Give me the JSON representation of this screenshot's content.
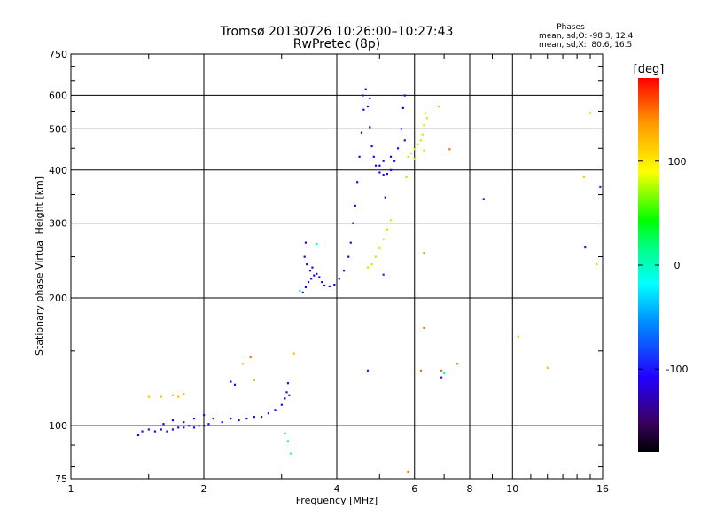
{
  "chart_data": {
    "type": "scatter",
    "title": "Tromsø 20130726 10:26:00–10:27:43",
    "subtitle": "RwPretec (8p)",
    "xlabel": "Frequency [MHz]",
    "ylabel": "Stationary phase Virtual Height [km]",
    "x_scale": "log",
    "y_scale": "log",
    "xlim": [
      1,
      16
    ],
    "ylim": [
      75,
      750
    ],
    "x_ticks": [
      1,
      2,
      4,
      6,
      8,
      10,
      16
    ],
    "y_ticks": [
      75,
      100,
      200,
      300,
      400,
      500,
      600,
      750
    ],
    "grid": true,
    "stats": {
      "heading": "Phases",
      "line_o": "mean, sd,O: -98.3, 12.4",
      "line_x": "mean, sd,X:  80.6, 16.5"
    },
    "colorbar": {
      "label": "[deg]",
      "range": [
        -180,
        180
      ],
      "ticks": [
        100,
        0,
        -100
      ]
    },
    "series": [
      {
        "color_deg": -105,
        "points": [
          [
            1.42,
            95
          ],
          [
            1.45,
            97
          ],
          [
            1.5,
            98
          ],
          [
            1.55,
            97
          ],
          [
            1.6,
            98
          ],
          [
            1.65,
            97
          ],
          [
            1.7,
            98
          ],
          [
            1.75,
            99
          ],
          [
            1.8,
            99
          ],
          [
            1.85,
            100
          ],
          [
            1.9,
            99
          ],
          [
            1.95,
            100
          ],
          [
            2.0,
            100
          ],
          [
            2.05,
            101
          ],
          [
            1.62,
            101
          ],
          [
            1.7,
            103
          ],
          [
            1.8,
            102
          ],
          [
            1.9,
            104
          ],
          [
            2.0,
            106
          ],
          [
            2.1,
            104
          ],
          [
            2.2,
            102
          ],
          [
            2.3,
            104
          ],
          [
            2.4,
            103
          ],
          [
            2.5,
            104
          ],
          [
            2.6,
            105
          ],
          [
            2.7,
            105
          ],
          [
            2.8,
            107
          ],
          [
            2.9,
            109
          ],
          [
            3.0,
            112
          ],
          [
            3.05,
            116
          ],
          [
            3.08,
            120
          ],
          [
            3.1,
            126
          ],
          [
            3.12,
            118
          ],
          [
            2.3,
            127
          ],
          [
            2.35,
            125
          ]
        ]
      },
      {
        "color_deg": -115,
        "points": [
          [
            3.35,
            206
          ],
          [
            3.4,
            212
          ],
          [
            3.45,
            218
          ],
          [
            3.5,
            222
          ],
          [
            3.55,
            226
          ],
          [
            3.6,
            228
          ],
          [
            3.65,
            224
          ],
          [
            3.7,
            218
          ],
          [
            3.75,
            214
          ],
          [
            3.85,
            213
          ],
          [
            3.95,
            215
          ],
          [
            4.05,
            222
          ],
          [
            4.15,
            232
          ],
          [
            4.25,
            250
          ],
          [
            4.3,
            270
          ],
          [
            4.35,
            300
          ],
          [
            4.4,
            330
          ],
          [
            4.45,
            375
          ],
          [
            4.5,
            430
          ],
          [
            4.55,
            490
          ],
          [
            4.6,
            555
          ],
          [
            4.65,
            620
          ],
          [
            4.7,
            565
          ],
          [
            4.75,
            505
          ],
          [
            4.8,
            455
          ],
          [
            4.9,
            410
          ],
          [
            5.0,
            395
          ],
          [
            5.1,
            390
          ],
          [
            5.2,
            392
          ],
          [
            5.3,
            400
          ],
          [
            5.4,
            420
          ],
          [
            5.5,
            450
          ],
          [
            5.6,
            500
          ],
          [
            5.65,
            560
          ],
          [
            5.7,
            600
          ],
          [
            3.38,
            250
          ],
          [
            3.42,
            240
          ],
          [
            3.48,
            232
          ],
          [
            3.52,
            236
          ],
          [
            4.58,
            600
          ],
          [
            4.75,
            590
          ],
          [
            4.85,
            430
          ],
          [
            5.0,
            410
          ],
          [
            5.3,
            430
          ],
          [
            5.1,
            420
          ],
          [
            3.4,
            270
          ],
          [
            5.15,
            345
          ],
          [
            5.7,
            470
          ]
        ]
      },
      {
        "color_deg": 75,
        "points": [
          [
            4.7,
            236
          ],
          [
            4.8,
            240
          ],
          [
            4.9,
            250
          ],
          [
            5.0,
            262
          ],
          [
            5.1,
            275
          ],
          [
            5.2,
            290
          ],
          [
            5.3,
            305
          ],
          [
            5.8,
            430
          ],
          [
            5.9,
            438
          ],
          [
            6.0,
            448
          ],
          [
            6.1,
            460
          ],
          [
            6.2,
            470
          ],
          [
            6.25,
            485
          ],
          [
            6.3,
            510
          ],
          [
            6.35,
            545
          ],
          [
            6.4,
            530
          ],
          [
            6.3,
            445
          ],
          [
            6.0,
            425
          ]
        ]
      },
      {
        "color_deg": 120,
        "points": [
          [
            1.5,
            117
          ],
          [
            1.6,
            117
          ],
          [
            1.7,
            118
          ],
          [
            1.75,
            117
          ],
          [
            1.8,
            119
          ],
          [
            2.45,
            140
          ],
          [
            2.6,
            128
          ],
          [
            3.2,
            148
          ],
          [
            6.8,
            565
          ],
          [
            5.75,
            385
          ],
          [
            10.3,
            162
          ],
          [
            12.0,
            137
          ],
          [
            14.5,
            385
          ],
          [
            15.0,
            545
          ],
          [
            15.5,
            240
          ]
        ]
      },
      {
        "color_deg": 150,
        "points": [
          [
            2.55,
            145
          ],
          [
            6.9,
            135
          ],
          [
            7.5,
            140
          ],
          [
            6.2,
            135
          ],
          [
            6.3,
            255
          ],
          [
            6.3,
            170
          ],
          [
            7.2,
            448
          ],
          [
            5.8,
            78
          ]
        ]
      },
      {
        "color_deg": 10,
        "points": [
          [
            3.1,
            92
          ],
          [
            3.3,
            208
          ],
          [
            3.6,
            268
          ],
          [
            7.0,
            133
          ],
          [
            3.15,
            86
          ],
          [
            3.05,
            96
          ]
        ]
      },
      {
        "color_deg": -95,
        "points": [
          [
            8.6,
            342
          ],
          [
            14.6,
            263
          ],
          [
            15.8,
            365
          ],
          [
            4.7,
            135
          ],
          [
            6.9,
            130
          ],
          [
            5.1,
            227
          ]
        ]
      }
    ]
  }
}
